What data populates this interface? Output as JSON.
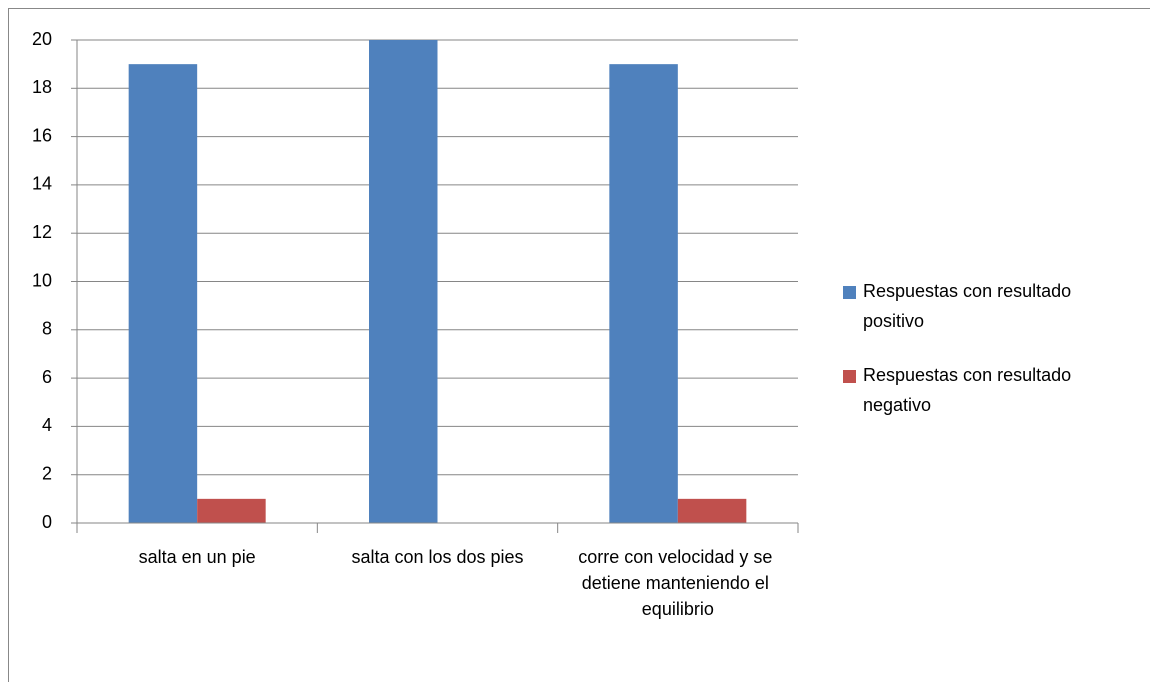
{
  "chart_data": {
    "type": "bar",
    "categories": [
      "salta en un pie",
      "salta con los dos pies",
      "corre con velocidad y se detiene manteniendo el equilibrio"
    ],
    "series": [
      {
        "name": "Respuestas con resultado positivo",
        "color": "#4f81bd",
        "values": [
          19,
          20,
          19
        ]
      },
      {
        "name": "Respuestas con resultado negativo",
        "color": "#c0504d",
        "values": [
          1,
          0,
          1
        ]
      }
    ],
    "ylim": [
      0,
      20
    ],
    "yticks": [
      0,
      2,
      4,
      6,
      8,
      10,
      12,
      14,
      16,
      18,
      20
    ],
    "grid": true,
    "legend": "right"
  }
}
